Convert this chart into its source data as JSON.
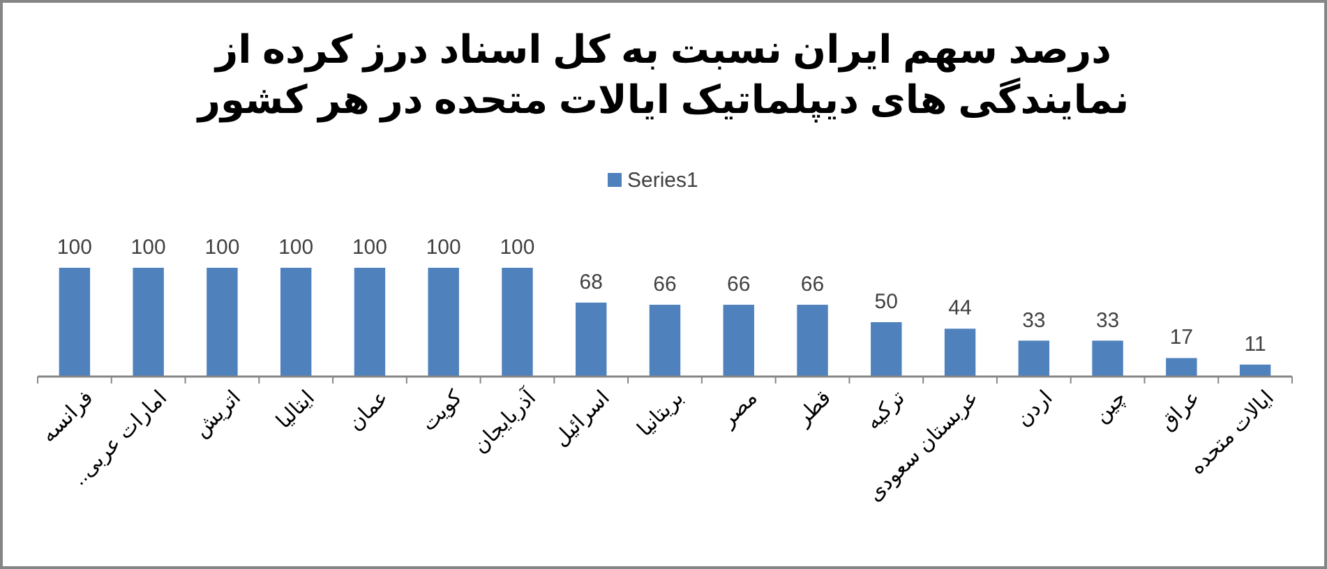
{
  "chart_data": {
    "type": "bar",
    "title": "درصد سهم ایران نسبت به کل اسناد درز کرده از نمایندگی های دیپلماتیک ایالات متحده در هر کشور",
    "categories": [
      "فرانسه",
      "امارات عربی..",
      "اتریش",
      "ایتالیا",
      "عمان",
      "کویت",
      "آذربایجان",
      "اسرائیل",
      "بریتانیا",
      "مصر",
      "قطر",
      "ترکیه",
      "عربستان سعودی",
      "اردن",
      "چین",
      "عراق",
      "ایالات متحده"
    ],
    "series": [
      {
        "name": "Series1",
        "color": "#4f81bd",
        "values": [
          100,
          100,
          100,
          100,
          100,
          100,
          100,
          68,
          66,
          66,
          66,
          50,
          44,
          33,
          33,
          17,
          11
        ]
      }
    ],
    "data_labels": true,
    "legend": "top",
    "grid": false
  }
}
